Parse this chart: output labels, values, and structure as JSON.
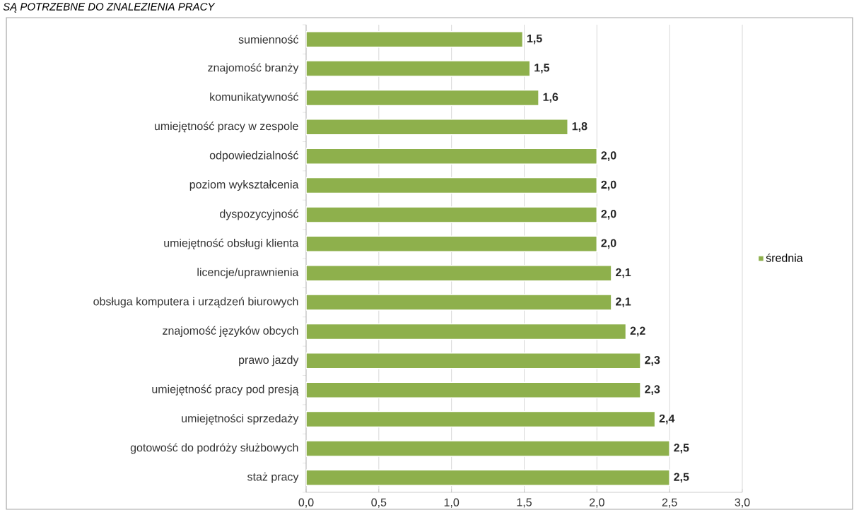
{
  "chart_data": {
    "type": "bar",
    "orientation": "horizontal",
    "title": "SĄ POTRZEBNE DO ZNALEZIENIA PRACY",
    "categories": [
      "sumienność",
      "znajomość branży",
      "komunikatywność",
      "umiejętność pracy w zespole",
      "odpowiedzialność",
      "poziom wykształcenia",
      "dyspozycyjność",
      "umiejętność obsługi klienta",
      "licencje/uprawnienia",
      "obsługa komputera i urządzeń biurowych",
      "znajomość języków obcych",
      "prawo jazdy",
      "umiejętność pracy pod presją",
      "umiejętności sprzedaży",
      "gotowość do podróży służbowych",
      "staż pracy"
    ],
    "series": [
      {
        "name": "średnia",
        "color": "#8eb04c",
        "values": [
          1.49,
          1.54,
          1.6,
          1.8,
          2.0,
          2.0,
          2.0,
          2.0,
          2.1,
          2.1,
          2.2,
          2.3,
          2.3,
          2.4,
          2.5,
          2.5
        ],
        "value_labels": [
          "1,5",
          "1,5",
          "1,6",
          "1,8",
          "2,0",
          "2,0",
          "2,0",
          "2,0",
          "2,1",
          "2,1",
          "2,2",
          "2,3",
          "2,3",
          "2,4",
          "2,5",
          "2,5"
        ]
      }
    ],
    "xlim": [
      0,
      3.0
    ],
    "xticks": [
      {
        "value": 0,
        "label": "0,0"
      },
      {
        "value": 0.5,
        "label": "0,5"
      },
      {
        "value": 1.0,
        "label": "1,0"
      },
      {
        "value": 1.5,
        "label": "1,5"
      },
      {
        "value": 2.0,
        "label": "2,0"
      },
      {
        "value": 2.5,
        "label": "2,5"
      },
      {
        "value": 3.0,
        "label": "3,0"
      }
    ],
    "grid": "x",
    "legend": "right"
  }
}
